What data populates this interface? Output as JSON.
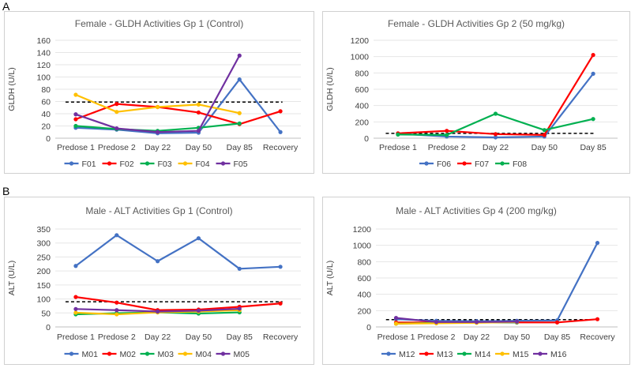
{
  "panels": {
    "a": "A",
    "b": "B"
  },
  "chart_data": [
    {
      "type": "line",
      "title": "Female - GLDH Activities Gp 1 (Control)",
      "ylabel": "GLDH (U/L)",
      "xlabel": "",
      "categories": [
        "Predose 1",
        "Predose 2",
        "Day 22",
        "Day 50",
        "Day 85",
        "Recovery"
      ],
      "ylim": [
        0,
        160
      ],
      "yticks": [
        0,
        20,
        40,
        60,
        80,
        100,
        120,
        140,
        160
      ],
      "reference_line": 59,
      "series": [
        {
          "name": "F01",
          "color": "#4472C4",
          "values": [
            17,
            14,
            8,
            9,
            96,
            10
          ]
        },
        {
          "name": "F02",
          "color": "#FF0000",
          "values": [
            31,
            56,
            51,
            42,
            23,
            44
          ]
        },
        {
          "name": "F03",
          "color": "#00B050",
          "values": [
            20,
            15,
            12,
            17,
            24,
            null
          ]
        },
        {
          "name": "F04",
          "color": "#FFC000",
          "values": [
            71,
            43,
            51,
            55,
            41,
            null
          ]
        },
        {
          "name": "F05",
          "color": "#7030A0",
          "values": [
            39,
            16,
            10,
            12,
            135,
            null
          ]
        }
      ]
    },
    {
      "type": "line",
      "title": "Female - GLDH Activities Gp 2 (50 mg/kg)",
      "ylabel": "GLDH (U/L)",
      "xlabel": "",
      "categories": [
        "Predose 1",
        "Predose 2",
        "Day 22",
        "Day 50",
        "Day 85"
      ],
      "ylim": [
        0,
        1200
      ],
      "yticks": [
        0,
        200,
        400,
        600,
        800,
        1000,
        1200
      ],
      "reference_line": 59,
      "series": [
        {
          "name": "F06",
          "color": "#4472C4",
          "values": [
            55,
            20,
            10,
            20,
            790
          ]
        },
        {
          "name": "F07",
          "color": "#FF0000",
          "values": [
            60,
            90,
            50,
            40,
            1020
          ]
        },
        {
          "name": "F08",
          "color": "#00B050",
          "values": [
            45,
            40,
            300,
            100,
            235
          ]
        }
      ]
    },
    {
      "type": "line",
      "title": "Male - ALT Activities Gp 1 (Control)",
      "ylabel": "ALT (U/L)",
      "xlabel": "",
      "categories": [
        "Predose 1",
        "Predose 2",
        "Day 22",
        "Day 50",
        "Day 85",
        "Recovery"
      ],
      "ylim": [
        0,
        350
      ],
      "yticks": [
        0,
        50,
        100,
        150,
        200,
        250,
        300,
        350
      ],
      "reference_line": 90,
      "series": [
        {
          "name": "M01",
          "color": "#4472C4",
          "values": [
            218,
            328,
            235,
            317,
            208,
            215
          ]
        },
        {
          "name": "M02",
          "color": "#FF0000",
          "values": [
            107,
            87,
            60,
            62,
            72,
            84
          ]
        },
        {
          "name": "M03",
          "color": "#00B050",
          "values": [
            45,
            49,
            52,
            48,
            52,
            null
          ]
        },
        {
          "name": "M04",
          "color": "#FFC000",
          "values": [
            51,
            45,
            52,
            55,
            60,
            null
          ]
        },
        {
          "name": "M05",
          "color": "#7030A0",
          "values": [
            64,
            60,
            55,
            58,
            65,
            null
          ]
        }
      ]
    },
    {
      "type": "line",
      "title": "Male - ALT Activities Gp 4 (200 mg/kg)",
      "ylabel": "ALT (U/L)",
      "xlabel": "",
      "categories": [
        "Predose 1",
        "Predose 2",
        "Day 22",
        "Day 50",
        "Day 85",
        "Recovery"
      ],
      "ylim": [
        0,
        1200
      ],
      "yticks": [
        0,
        200,
        400,
        600,
        800,
        1000,
        1200
      ],
      "reference_line": 90,
      "series": [
        {
          "name": "M12",
          "color": "#4472C4",
          "values": [
            95,
            75,
            70,
            75,
            80,
            1030
          ]
        },
        {
          "name": "M13",
          "color": "#FF0000",
          "values": [
            55,
            55,
            55,
            55,
            55,
            95
          ]
        },
        {
          "name": "M14",
          "color": "#00B050",
          "values": [
            40,
            50,
            55,
            55,
            null,
            null
          ]
        },
        {
          "name": "M15",
          "color": "#FFC000",
          "values": [
            40,
            45,
            50,
            60,
            null,
            null
          ]
        },
        {
          "name": "M16",
          "color": "#7030A0",
          "values": [
            110,
            60,
            60,
            65,
            null,
            null
          ]
        }
      ]
    }
  ]
}
